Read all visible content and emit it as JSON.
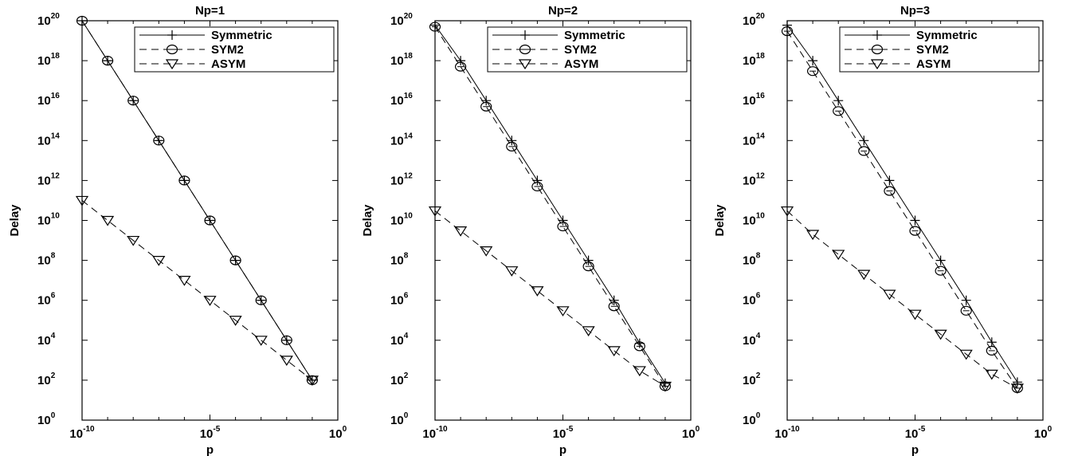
{
  "chart_data": [
    {
      "type": "line",
      "title": "Np=1",
      "xlabel": "p",
      "ylabel": "Delay",
      "x_scale": "log",
      "y_scale": "log",
      "xlim": [
        1e-10,
        1
      ],
      "ylim": [
        1,
        1e+20
      ],
      "x_ticks": [
        1e-10,
        1e-05,
        1
      ],
      "y_ticks": [
        1,
        100.0,
        10000.0,
        1000000.0,
        100000000.0,
        10000000000.0,
        1000000000000.0,
        100000000000000.0,
        1e+16,
        1e+18,
        1e+20
      ],
      "grid": false,
      "legend_position": "top-right",
      "series": [
        {
          "name": "Symmetric",
          "line_style": "solid",
          "marker": "plus",
          "x": [
            1e-10,
            1e-09,
            1e-08,
            1e-07,
            1e-06,
            1e-05,
            0.0001,
            0.001,
            0.01,
            0.1
          ],
          "y": [
            1e+20,
            1e+18,
            1e+16,
            100000000000000.0,
            1000000000000.0,
            10000000000.0,
            100000000.0,
            1000000.0,
            10000.0,
            100.0
          ]
        },
        {
          "name": "SYM2",
          "line_style": "dashed",
          "marker": "circle",
          "x": [
            1e-10,
            1e-09,
            1e-08,
            1e-07,
            1e-06,
            1e-05,
            0.0001,
            0.001,
            0.01,
            0.1
          ],
          "y": [
            1e+20,
            1e+18,
            1e+16,
            100000000000000.0,
            1000000000000.0,
            10000000000.0,
            100000000.0,
            1000000.0,
            10000.0,
            100.0
          ]
        },
        {
          "name": "ASYM",
          "line_style": "dashed",
          "marker": "triangle-down",
          "x": [
            1e-10,
            1e-09,
            1e-08,
            1e-07,
            1e-06,
            1e-05,
            0.0001,
            0.001,
            0.01,
            0.1
          ],
          "y": [
            100000000000.0,
            10000000000.0,
            1000000000.0,
            100000000.0,
            10000000.0,
            1000000.0,
            100000.0,
            10000.0,
            1000.0,
            100.0
          ]
        }
      ]
    },
    {
      "type": "line",
      "title": "Np=2",
      "xlabel": "p",
      "ylabel": "Delay",
      "x_scale": "log",
      "y_scale": "log",
      "xlim": [
        1e-10,
        1
      ],
      "ylim": [
        1,
        1e+20
      ],
      "x_ticks": [
        1e-10,
        1e-05,
        1
      ],
      "y_ticks": [
        1,
        100.0,
        10000.0,
        1000000.0,
        100000000.0,
        10000000000.0,
        1000000000000.0,
        100000000000000.0,
        1e+16,
        1e+18,
        1e+20
      ],
      "grid": false,
      "legend_position": "top-right",
      "series": [
        {
          "name": "Symmetric",
          "line_style": "solid",
          "marker": "plus",
          "x": [
            1e-10,
            1e-09,
            1e-08,
            1e-07,
            1e-06,
            1e-05,
            0.0001,
            0.001,
            0.01,
            0.1
          ],
          "y": [
            6e+19,
            1e+18,
            1e+16,
            100000000000000.0,
            1000000000000.0,
            10000000000.0,
            100000000.0,
            1000000.0,
            7000.0,
            70
          ]
        },
        {
          "name": "SYM2",
          "line_style": "dashed",
          "marker": "circle",
          "x": [
            1e-10,
            1e-09,
            1e-08,
            1e-07,
            1e-06,
            1e-05,
            0.0001,
            0.001,
            0.01,
            0.1
          ],
          "y": [
            5e+19,
            5e+17,
            5000000000000000.0,
            50000000000000.0,
            500000000000.0,
            5000000000.0,
            50000000.0,
            500000.0,
            5000.0,
            50
          ]
        },
        {
          "name": "ASYM",
          "line_style": "dashed",
          "marker": "triangle-down",
          "x": [
            1e-10,
            1e-09,
            1e-08,
            1e-07,
            1e-06,
            1e-05,
            0.0001,
            0.001,
            0.01,
            0.1
          ],
          "y": [
            30000000000.0,
            3000000000.0,
            300000000.0,
            30000000.0,
            3000000.0,
            300000.0,
            30000.0,
            3000.0,
            300.0,
            50
          ]
        }
      ]
    },
    {
      "type": "line",
      "title": "Np=3",
      "xlabel": "p",
      "ylabel": "Delay",
      "x_scale": "log",
      "y_scale": "log",
      "xlim": [
        1e-10,
        1
      ],
      "ylim": [
        1,
        1e+20
      ],
      "x_ticks": [
        1e-10,
        1e-05,
        1
      ],
      "y_ticks": [
        1,
        100.0,
        10000.0,
        1000000.0,
        100000000.0,
        10000000000.0,
        1000000000000.0,
        100000000000000.0,
        1e+16,
        1e+18,
        1e+20
      ],
      "grid": false,
      "legend_position": "top-right",
      "series": [
        {
          "name": "Symmetric",
          "line_style": "solid",
          "marker": "plus",
          "x": [
            1e-10,
            1e-09,
            1e-08,
            1e-07,
            1e-06,
            1e-05,
            0.0001,
            0.001,
            0.01,
            0.1
          ],
          "y": [
            6e+19,
            1e+18,
            1e+16,
            100000000000000.0,
            1000000000000.0,
            10000000000.0,
            100000000.0,
            1000000.0,
            8000.0,
            80
          ]
        },
        {
          "name": "SYM2",
          "line_style": "dashed",
          "marker": "circle",
          "x": [
            1e-10,
            1e-09,
            1e-08,
            1e-07,
            1e-06,
            1e-05,
            0.0001,
            0.001,
            0.01,
            0.1
          ],
          "y": [
            3e+19,
            3e+17,
            3000000000000000.0,
            30000000000000.0,
            300000000000.0,
            3000000000.0,
            30000000.0,
            300000.0,
            3000.0,
            40
          ]
        },
        {
          "name": "ASYM",
          "line_style": "dashed",
          "marker": "triangle-down",
          "x": [
            1e-10,
            1e-09,
            1e-08,
            1e-07,
            1e-06,
            1e-05,
            0.0001,
            0.001,
            0.01,
            0.1
          ],
          "y": [
            30000000000.0,
            2000000000.0,
            200000000.0,
            20000000.0,
            2000000.0,
            200000.0,
            20000.0,
            2000.0,
            200.0,
            40
          ]
        }
      ]
    }
  ]
}
